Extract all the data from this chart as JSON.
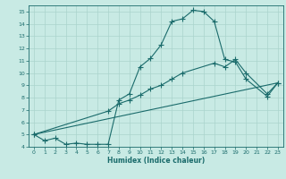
{
  "xlabel": "Humidex (Indice chaleur)",
  "xlim": [
    -0.5,
    23.5
  ],
  "ylim": [
    4,
    15.5
  ],
  "yticks": [
    4,
    5,
    6,
    7,
    8,
    9,
    10,
    11,
    12,
    13,
    14,
    15
  ],
  "xticks": [
    0,
    1,
    2,
    3,
    4,
    5,
    6,
    7,
    8,
    9,
    10,
    11,
    12,
    13,
    14,
    15,
    16,
    17,
    18,
    19,
    20,
    21,
    22,
    23
  ],
  "background_color": "#c8eae4",
  "grid_color": "#aad4cc",
  "line_color": "#1a6b6b",
  "line1_x": [
    0,
    1,
    2,
    3,
    4,
    5,
    6,
    7,
    8,
    9,
    10,
    11,
    12,
    13,
    14,
    15,
    16,
    17,
    18,
    19,
    20,
    22,
    23
  ],
  "line1_y": [
    5.0,
    4.5,
    4.7,
    4.2,
    4.3,
    4.2,
    4.2,
    4.2,
    7.8,
    8.3,
    10.5,
    11.2,
    12.3,
    14.2,
    14.4,
    15.1,
    15.0,
    14.2,
    11.1,
    10.9,
    9.5,
    8.1,
    9.2
  ],
  "line2_x": [
    0,
    7,
    8,
    9,
    10,
    11,
    12,
    13,
    14,
    17,
    18,
    19,
    20,
    22,
    23
  ],
  "line2_y": [
    5.0,
    6.9,
    7.5,
    7.8,
    8.2,
    8.7,
    9.0,
    9.5,
    10.0,
    10.8,
    10.5,
    11.1,
    10.0,
    8.3,
    9.2
  ],
  "line3_x": [
    0,
    23
  ],
  "line3_y": [
    5.0,
    9.2
  ]
}
